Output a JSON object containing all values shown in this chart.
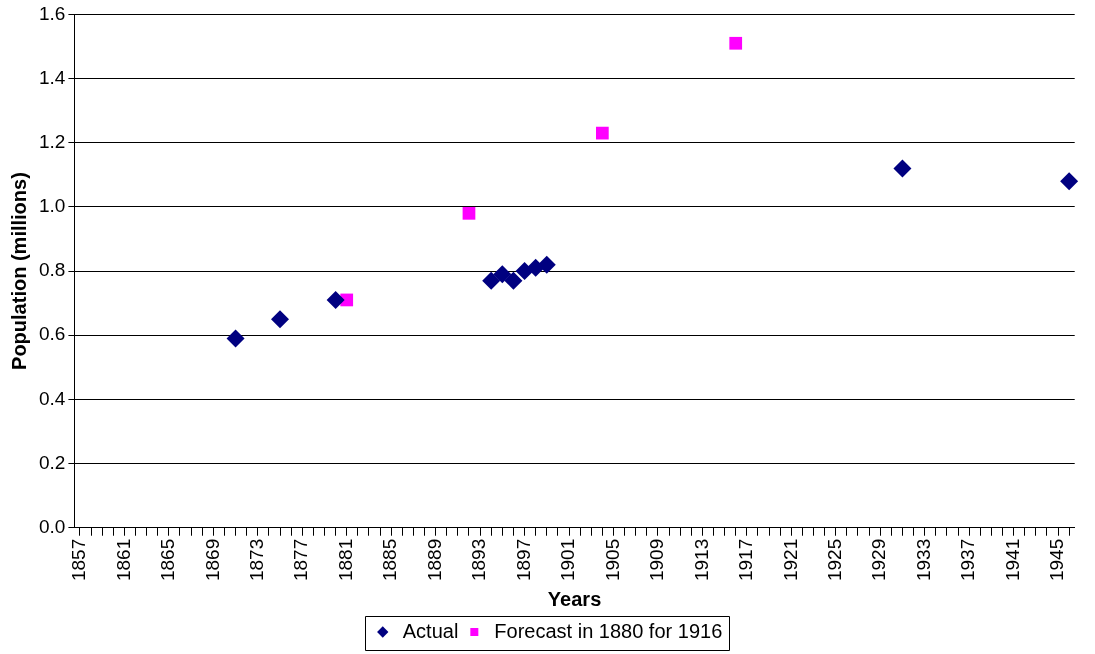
{
  "chart_data": {
    "type": "scatter",
    "xlabel": "Years",
    "ylabel": "Population (millions)",
    "xlim": [
      1856.5,
      1946.5
    ],
    "xticks": [
      {
        "value": 1857,
        "label": "1857"
      },
      {
        "value": 1858,
        "label": null
      },
      {
        "value": 1859,
        "label": null
      },
      {
        "value": 1860,
        "label": null
      },
      {
        "value": 1861,
        "label": "1861"
      },
      {
        "value": 1862,
        "label": null
      },
      {
        "value": 1863,
        "label": null
      },
      {
        "value": 1864,
        "label": null
      },
      {
        "value": 1865,
        "label": "1865"
      },
      {
        "value": 1866,
        "label": null
      },
      {
        "value": 1867,
        "label": null
      },
      {
        "value": 1868,
        "label": null
      },
      {
        "value": 1869,
        "label": "1869"
      },
      {
        "value": 1870,
        "label": null
      },
      {
        "value": 1871,
        "label": null
      },
      {
        "value": 1872,
        "label": null
      },
      {
        "value": 1873,
        "label": "1873"
      },
      {
        "value": 1874,
        "label": null
      },
      {
        "value": 1875,
        "label": null
      },
      {
        "value": 1876,
        "label": null
      },
      {
        "value": 1877,
        "label": "1877"
      },
      {
        "value": 1878,
        "label": null
      },
      {
        "value": 1879,
        "label": null
      },
      {
        "value": 1880,
        "label": null
      },
      {
        "value": 1881,
        "label": "1881"
      },
      {
        "value": 1882,
        "label": null
      },
      {
        "value": 1883,
        "label": null
      },
      {
        "value": 1884,
        "label": null
      },
      {
        "value": 1885,
        "label": "1885"
      },
      {
        "value": 1886,
        "label": null
      },
      {
        "value": 1887,
        "label": null
      },
      {
        "value": 1888,
        "label": null
      },
      {
        "value": 1889,
        "label": "1889"
      },
      {
        "value": 1890,
        "label": null
      },
      {
        "value": 1891,
        "label": null
      },
      {
        "value": 1892,
        "label": null
      },
      {
        "value": 1893,
        "label": "1893"
      },
      {
        "value": 1894,
        "label": null
      },
      {
        "value": 1895,
        "label": null
      },
      {
        "value": 1896,
        "label": null
      },
      {
        "value": 1897,
        "label": "1897"
      },
      {
        "value": 1898,
        "label": null
      },
      {
        "value": 1899,
        "label": null
      },
      {
        "value": 1900,
        "label": null
      },
      {
        "value": 1901,
        "label": "1901"
      },
      {
        "value": 1902,
        "label": null
      },
      {
        "value": 1903,
        "label": null
      },
      {
        "value": 1904,
        "label": null
      },
      {
        "value": 1905,
        "label": "1905"
      },
      {
        "value": 1906,
        "label": null
      },
      {
        "value": 1907,
        "label": null
      },
      {
        "value": 1908,
        "label": null
      },
      {
        "value": 1909,
        "label": "1909"
      },
      {
        "value": 1910,
        "label": null
      },
      {
        "value": 1911,
        "label": null
      },
      {
        "value": 1912,
        "label": null
      },
      {
        "value": 1913,
        "label": "1913"
      },
      {
        "value": 1914,
        "label": null
      },
      {
        "value": 1915,
        "label": null
      },
      {
        "value": 1916,
        "label": null
      },
      {
        "value": 1917,
        "label": "1917"
      },
      {
        "value": 1918,
        "label": null
      },
      {
        "value": 1919,
        "label": null
      },
      {
        "value": 1920,
        "label": null
      },
      {
        "value": 1921,
        "label": "1921"
      },
      {
        "value": 1922,
        "label": null
      },
      {
        "value": 1923,
        "label": null
      },
      {
        "value": 1924,
        "label": null
      },
      {
        "value": 1925,
        "label": "1925"
      },
      {
        "value": 1926,
        "label": null
      },
      {
        "value": 1927,
        "label": null
      },
      {
        "value": 1928,
        "label": null
      },
      {
        "value": 1929,
        "label": "1929"
      },
      {
        "value": 1930,
        "label": null
      },
      {
        "value": 1931,
        "label": null
      },
      {
        "value": 1932,
        "label": null
      },
      {
        "value": 1933,
        "label": "1933"
      },
      {
        "value": 1934,
        "label": null
      },
      {
        "value": 1935,
        "label": null
      },
      {
        "value": 1936,
        "label": null
      },
      {
        "value": 1937,
        "label": "1937"
      },
      {
        "value": 1938,
        "label": null
      },
      {
        "value": 1939,
        "label": null
      },
      {
        "value": 1940,
        "label": null
      },
      {
        "value": 1941,
        "label": "1941"
      },
      {
        "value": 1942,
        "label": null
      },
      {
        "value": 1943,
        "label": null
      },
      {
        "value": 1944,
        "label": null
      },
      {
        "value": 1945,
        "label": "1945"
      },
      {
        "value": 1946,
        "label": null
      }
    ],
    "ylim": [
      0,
      1.6
    ],
    "yticks": [
      {
        "value": 0,
        "label": "0.0"
      },
      {
        "value": 0.2,
        "label": "0.2"
      },
      {
        "value": 0.4,
        "label": "0.4"
      },
      {
        "value": 0.6,
        "label": "0.6"
      },
      {
        "value": 0.8,
        "label": "0.8"
      },
      {
        "value": 1.0,
        "label": "1.0"
      },
      {
        "value": 1.2,
        "label": "1.2"
      },
      {
        "value": 1.4,
        "label": "1.4"
      },
      {
        "value": 1.6,
        "label": "1.6"
      }
    ],
    "grid": "y",
    "legend": "bottom",
    "series": [
      {
        "name": "Actual",
        "color": "#000080",
        "marker": "diamond",
        "x": [
          1871,
          1875,
          1880,
          1894,
          1895,
          1896,
          1897,
          1898,
          1899,
          1931,
          1946
        ],
        "values": [
          0.59,
          0.65,
          0.71,
          0.77,
          0.79,
          0.77,
          0.8,
          0.81,
          0.82,
          1.12,
          1.08
        ]
      },
      {
        "name": "Forecast in 1880 for 1916",
        "color": "#ff00ff",
        "marker": "square",
        "x": [
          1881,
          1892,
          1904,
          1916
        ],
        "values": [
          0.71,
          0.98,
          1.23,
          1.51
        ]
      }
    ]
  }
}
